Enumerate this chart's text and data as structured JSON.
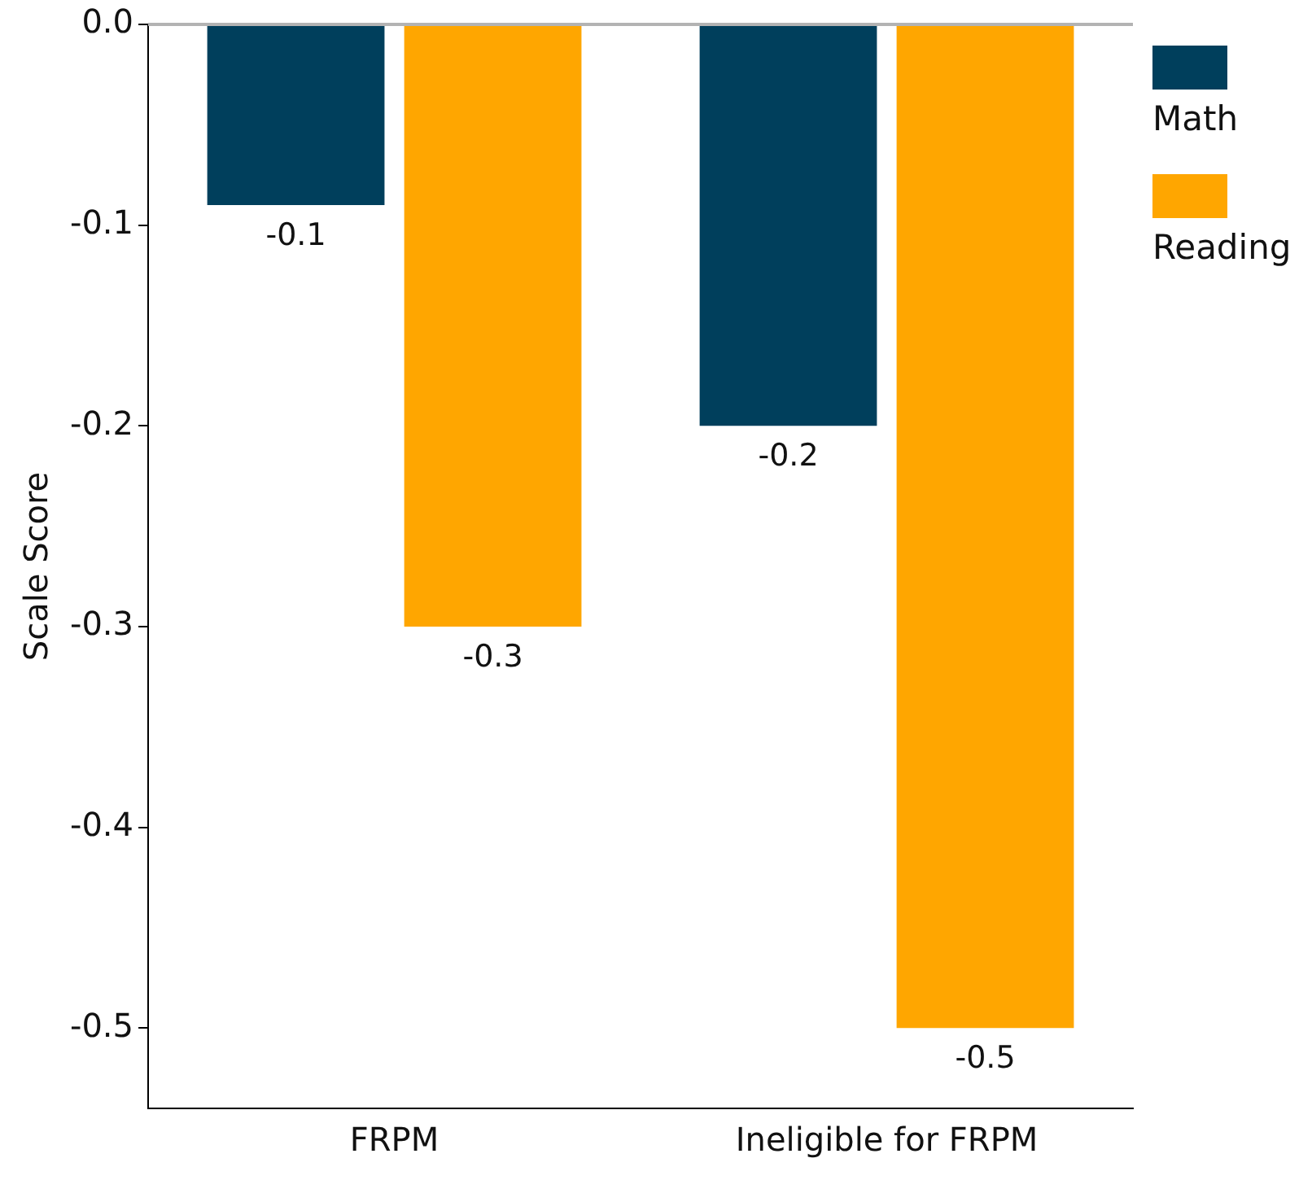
{
  "chart_data": {
    "type": "bar",
    "ylabel": "Scale Score",
    "categories": [
      "FRPM",
      "Ineligible for FRPM"
    ],
    "series": [
      {
        "name": "Math",
        "color": "#003f5c",
        "values": [
          -0.09,
          -0.2
        ],
        "value_labels": [
          "-0.1",
          "-0.2"
        ]
      },
      {
        "name": "Reading",
        "color": "#ffa600",
        "values": [
          -0.3,
          -0.5
        ],
        "value_labels": [
          "-0.3",
          "-0.5"
        ]
      }
    ],
    "ylim": [
      -0.54,
      0
    ],
    "yticks": [
      {
        "value": 0,
        "label": "0.0"
      },
      -0.1,
      -0.2,
      -0.3,
      -0.4,
      -0.5
    ],
    "ref_lines": [
      {
        "axis": "y",
        "value": 0,
        "color": "#b3b3b3"
      }
    ],
    "grid": false,
    "legend": "top right"
  }
}
